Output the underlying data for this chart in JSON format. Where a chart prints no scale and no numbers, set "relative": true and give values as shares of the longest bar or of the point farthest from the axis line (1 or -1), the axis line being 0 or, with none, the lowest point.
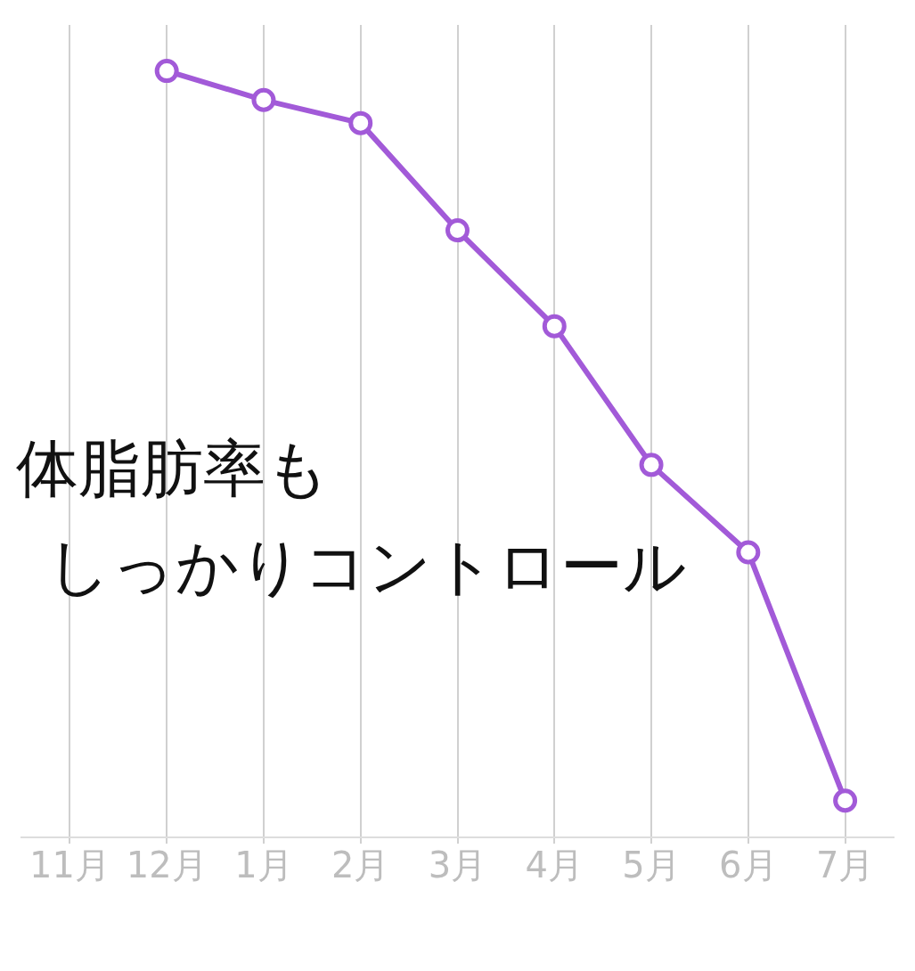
{
  "chart_data": {
    "type": "line",
    "relative": true,
    "categories": [
      "11月",
      "12月",
      "1月",
      "2月",
      "3月",
      "4月",
      "5月",
      "6月",
      "7月"
    ],
    "series": [
      {
        "color": "#a25ad8",
        "values": [
          null,
          1,
          0.962,
          0.932,
          0.792,
          0.667,
          0.486,
          0.372,
          0.048
        ]
      }
    ],
    "annotations": [
      "体脂肪率も",
      "しっかりコントロール"
    ],
    "grid": "x",
    "legend": false,
    "marker": "circle",
    "line_style": "solid"
  }
}
